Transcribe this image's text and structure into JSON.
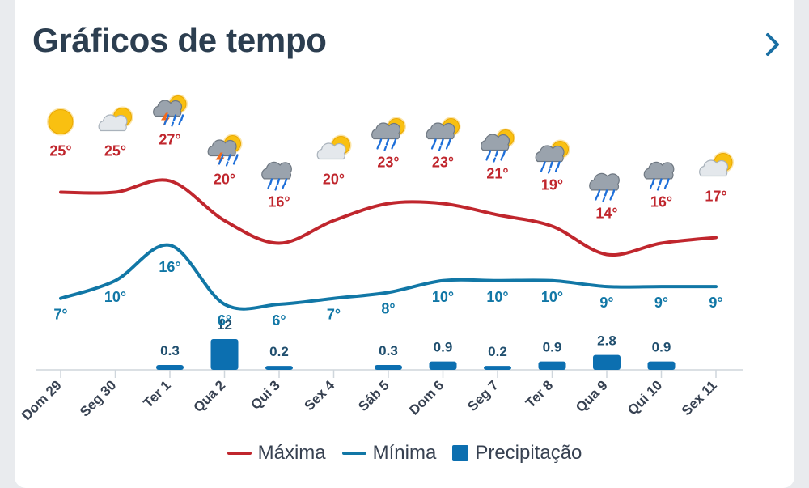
{
  "header": {
    "title": "Gráficos de tempo",
    "next_icon": "chevron-right-icon"
  },
  "colors": {
    "max": "#c0262d",
    "min": "#1177a6",
    "precip": "#0c6fb0",
    "title": "#2c3e50",
    "axis": "#cfd6dc"
  },
  "legend": {
    "max_label": "Máxima",
    "min_label": "Mínima",
    "precip_label": "Precipitação"
  },
  "chart_data": {
    "type": "line",
    "categories": [
      "Dom 29",
      "Seg 30",
      "Ter 1",
      "Qua 2",
      "Qui 3",
      "Sex 4",
      "Sáb 5",
      "Dom 6",
      "Seg 7",
      "Ter 8",
      "Qua 9",
      "Qui 10",
      "Sex 11"
    ],
    "icons": [
      "sun",
      "partly-cloudy",
      "thunderstorm",
      "thunderstorm",
      "rain",
      "partly-cloudy",
      "rain-sun",
      "rain-sun",
      "rain-sun",
      "rain-sun",
      "rain",
      "rain",
      "partly-cloudy"
    ],
    "series": [
      {
        "name": "Máxima",
        "values": [
          25,
          25,
          27,
          20,
          16,
          20,
          23,
          23,
          21,
          19,
          14,
          16,
          17
        ],
        "labels": [
          "25°",
          "25°",
          "27°",
          "20°",
          "16°",
          "20°",
          "23°",
          "23°",
          "21°",
          "19°",
          "14°",
          "16°",
          "17°"
        ]
      },
      {
        "name": "Mínima",
        "values": [
          7,
          10,
          16,
          6,
          6,
          7,
          8,
          10,
          10,
          10,
          9,
          9,
          9
        ],
        "labels": [
          "7°",
          "10°",
          "16°",
          "6°",
          "6°",
          "7°",
          "8°",
          "10°",
          "10°",
          "10°",
          "9°",
          "9°",
          "9°"
        ]
      },
      {
        "name": "Precipitação",
        "values": [
          0,
          0,
          0.3,
          12,
          0.2,
          0,
          0.3,
          0.9,
          0.2,
          0.9,
          2.8,
          0.9,
          0
        ],
        "labels": [
          "",
          "",
          "0.3",
          "12",
          "0.2",
          "",
          "0.3",
          "0.9",
          "0.2",
          "0.9",
          "2.8",
          "0.9",
          ""
        ]
      }
    ],
    "legend_position": "bottom",
    "grid": false
  }
}
